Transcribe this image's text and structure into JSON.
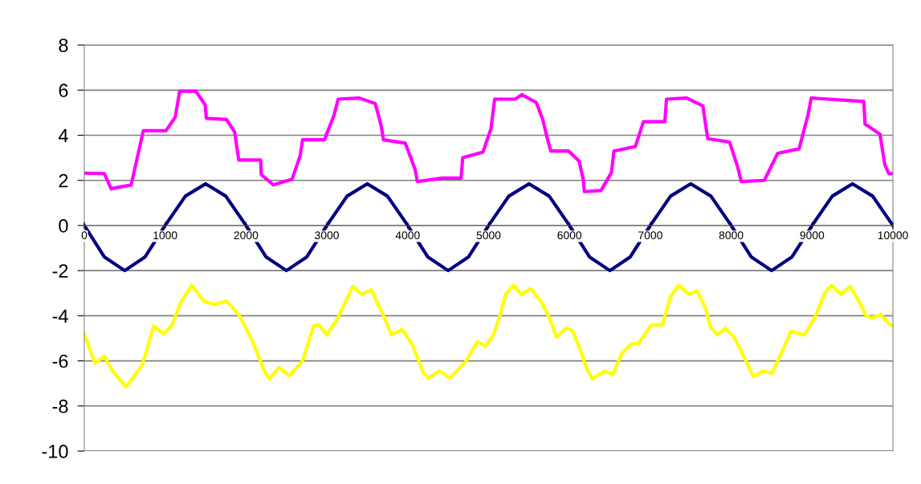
{
  "chart_data": {
    "type": "line",
    "xlim": [
      0,
      10000
    ],
    "ylim": [
      -10,
      8
    ],
    "xticks": [
      0,
      1000,
      2000,
      3000,
      4000,
      5000,
      6000,
      7000,
      8000,
      9000,
      10000
    ],
    "yticks": [
      -10,
      -8,
      -6,
      -4,
      -2,
      0,
      2,
      4,
      6,
      8
    ],
    "grid": "y",
    "marker": "none",
    "line_style": "solid",
    "series": [
      {
        "color": "#ff00ff",
        "x": [
          0,
          249,
          332,
          580,
          655,
          730,
          1010,
          1125,
          1180,
          1380,
          1495,
          1510,
          1760,
          1860,
          1910,
          2180,
          2190,
          2340,
          2570,
          2670,
          2700,
          2970,
          3090,
          3140,
          3400,
          3600,
          3670,
          3700,
          3970,
          4090,
          4120,
          4430,
          4660,
          4680,
          4930,
          5030,
          5075,
          5330,
          5410,
          5590,
          5670,
          5720,
          5770,
          5990,
          6120,
          6170,
          6185,
          6390,
          6520,
          6550,
          6815,
          6915,
          7180,
          7200,
          7450,
          7650,
          7710,
          7980,
          8080,
          8125,
          8410,
          8575,
          8840,
          8950,
          8990,
          9640,
          9655,
          9840,
          9900,
          9950,
          10000
        ],
        "values": [
          2.32,
          2.3,
          1.63,
          1.8,
          3.0,
          4.2,
          4.2,
          4.8,
          5.95,
          5.95,
          5.35,
          4.75,
          4.7,
          4.15,
          2.9,
          2.9,
          2.25,
          1.8,
          2.05,
          3.1,
          3.8,
          3.8,
          4.9,
          5.6,
          5.65,
          5.4,
          4.45,
          3.8,
          3.65,
          2.5,
          1.95,
          2.1,
          2.1,
          3.0,
          3.25,
          4.3,
          5.6,
          5.6,
          5.8,
          5.45,
          4.7,
          3.95,
          3.3,
          3.3,
          2.85,
          2.05,
          1.5,
          1.55,
          2.35,
          3.3,
          3.5,
          4.6,
          4.6,
          5.6,
          5.65,
          5.3,
          3.85,
          3.7,
          2.6,
          1.95,
          2.0,
          3.2,
          3.4,
          4.9,
          5.65,
          5.5,
          4.5,
          4.05,
          2.7,
          2.3,
          2.3
        ]
      },
      {
        "color": "#000080",
        "x": [
          0,
          250,
          500,
          750,
          1000,
          1250,
          1500,
          1750,
          2000,
          2250,
          2500,
          2750,
          3000,
          3250,
          3500,
          3750,
          4000,
          4250,
          4500,
          4750,
          5000,
          5250,
          5500,
          5750,
          6000,
          6250,
          6500,
          6750,
          7000,
          7250,
          7500,
          7750,
          8000,
          8250,
          8500,
          8750,
          9000,
          9250,
          9500,
          9750,
          10000
        ],
        "values": [
          0,
          -1.4,
          -2.0,
          -1.4,
          0,
          1.3,
          1.85,
          1.3,
          0,
          -1.4,
          -2.0,
          -1.4,
          0,
          1.3,
          1.85,
          1.3,
          0,
          -1.4,
          -2.0,
          -1.4,
          0,
          1.3,
          1.85,
          1.3,
          0,
          -1.4,
          -2.0,
          -1.4,
          0,
          1.3,
          1.85,
          1.3,
          0,
          -1.4,
          -2.0,
          -1.4,
          0,
          1.3,
          1.85,
          1.3,
          0
        ]
      },
      {
        "color": "#ffff00",
        "x": [
          0,
          130,
          250,
          350,
          515,
          715,
          860,
          980,
          1080,
          1195,
          1330,
          1475,
          1610,
          1760,
          1910,
          2070,
          2240,
          2290,
          2405,
          2540,
          2700,
          2835,
          2900,
          3000,
          3135,
          3320,
          3430,
          3550,
          3700,
          3800,
          3930,
          4060,
          4195,
          4260,
          4395,
          4525,
          4725,
          4860,
          4960,
          5060,
          5140,
          5210,
          5310,
          5405,
          5520,
          5655,
          5740,
          5840,
          5955,
          6035,
          6150,
          6220,
          6285,
          6435,
          6535,
          6650,
          6765,
          6850,
          7015,
          7150,
          7250,
          7350,
          7480,
          7580,
          7680,
          7745,
          7830,
          7930,
          8045,
          8175,
          8275,
          8390,
          8505,
          8640,
          8740,
          8905,
          9040,
          9155,
          9240,
          9355,
          9470,
          9570,
          9670,
          9735,
          9850,
          9950,
          10000
        ],
        "values": [
          -4.8,
          -6.1,
          -5.8,
          -6.45,
          -7.15,
          -6.2,
          -4.45,
          -4.8,
          -4.45,
          -3.4,
          -2.65,
          -3.35,
          -3.5,
          -3.35,
          -3.95,
          -5.05,
          -6.55,
          -6.8,
          -6.3,
          -6.65,
          -6.0,
          -4.45,
          -4.4,
          -4.85,
          -4.1,
          -2.7,
          -3.05,
          -2.85,
          -4.0,
          -4.85,
          -4.6,
          -5.3,
          -6.55,
          -6.75,
          -6.45,
          -6.75,
          -6.0,
          -5.15,
          -5.35,
          -4.85,
          -4.0,
          -3.05,
          -2.65,
          -3.05,
          -2.8,
          -3.4,
          -4.0,
          -4.95,
          -4.55,
          -4.65,
          -5.65,
          -6.4,
          -6.8,
          -6.45,
          -6.6,
          -5.65,
          -5.25,
          -5.25,
          -4.4,
          -4.4,
          -3.15,
          -2.65,
          -3.05,
          -2.9,
          -3.65,
          -4.5,
          -4.85,
          -4.55,
          -5.0,
          -5.95,
          -6.7,
          -6.45,
          -6.55,
          -5.5,
          -4.7,
          -4.85,
          -4.05,
          -3.0,
          -2.65,
          -3.05,
          -2.7,
          -3.3,
          -4.0,
          -4.1,
          -3.95,
          -4.35,
          -4.45
        ]
      }
    ]
  }
}
